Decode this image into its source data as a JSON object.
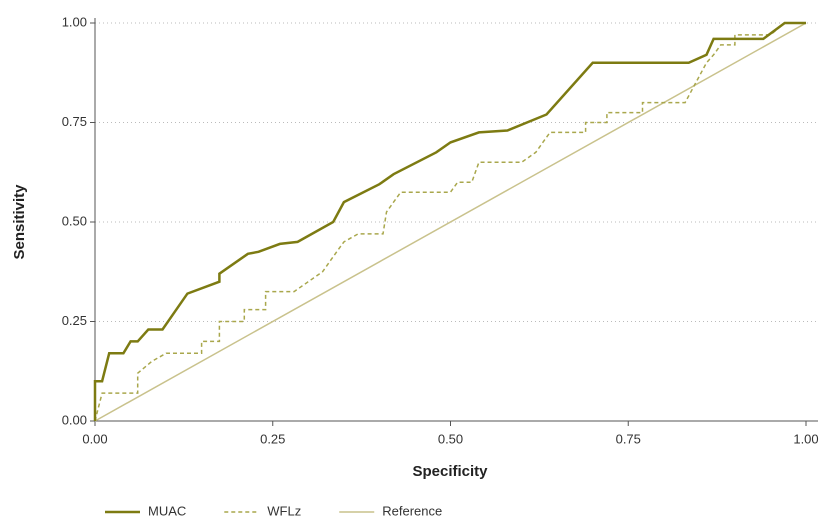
{
  "chart_data": {
    "type": "line",
    "xlabel": "Specificity",
    "ylabel": "Sensitivity",
    "xlim": [
      0,
      1
    ],
    "ylim": [
      0,
      1
    ],
    "xticks": [
      {
        "value": 0,
        "label": "0.00"
      },
      {
        "value": 0.25,
        "label": "0.25"
      },
      {
        "value": 0.5,
        "label": "0.50"
      },
      {
        "value": 0.75,
        "label": "0.75"
      },
      {
        "value": 1,
        "label": "1.00"
      }
    ],
    "yticks": [
      {
        "value": 0,
        "label": "0.00"
      },
      {
        "value": 0.25,
        "label": "0.25"
      },
      {
        "value": 0.5,
        "label": "0.50"
      },
      {
        "value": 0.75,
        "label": "0.75"
      },
      {
        "value": 1,
        "label": "1.00"
      }
    ],
    "grid": true,
    "legend": "bottom",
    "series": [
      {
        "name": "MUAC",
        "color": "#7d7b12",
        "linestyle": "solid",
        "x": [
          0,
          0,
          0.01,
          0.02,
          0.04,
          0.05,
          0.06,
          0.075,
          0.095,
          0.13,
          0.175,
          0.175,
          0.215,
          0.23,
          0.26,
          0.285,
          0.335,
          0.35,
          0.4,
          0.42,
          0.48,
          0.5,
          0.54,
          0.58,
          0.635,
          0.7,
          0.835,
          0.86,
          0.87,
          0.94,
          0.97,
          1
        ],
        "values": [
          0,
          0.1,
          0.1,
          0.17,
          0.17,
          0.2,
          0.2,
          0.23,
          0.23,
          0.32,
          0.35,
          0.37,
          0.42,
          0.425,
          0.445,
          0.45,
          0.5,
          0.55,
          0.595,
          0.62,
          0.675,
          0.7,
          0.725,
          0.73,
          0.77,
          0.9,
          0.9,
          0.92,
          0.96,
          0.96,
          1.0,
          1.0
        ]
      },
      {
        "name": "WFLz",
        "color": "#a9a74c",
        "linestyle": "dashed",
        "x": [
          0,
          0.01,
          0.06,
          0.06,
          0.08,
          0.1,
          0.15,
          0.15,
          0.175,
          0.175,
          0.21,
          0.21,
          0.24,
          0.24,
          0.28,
          0.3,
          0.32,
          0.33,
          0.34,
          0.35,
          0.37,
          0.405,
          0.41,
          0.43,
          0.5,
          0.51,
          0.53,
          0.54,
          0.6,
          0.62,
          0.64,
          0.69,
          0.69,
          0.72,
          0.72,
          0.77,
          0.77,
          0.83,
          0.86,
          0.87,
          0.88,
          0.9,
          0.9,
          0.95,
          0.97,
          1
        ],
        "values": [
          0,
          0.07,
          0.07,
          0.12,
          0.15,
          0.17,
          0.17,
          0.2,
          0.2,
          0.25,
          0.25,
          0.28,
          0.28,
          0.325,
          0.325,
          0.35,
          0.375,
          0.4,
          0.425,
          0.45,
          0.47,
          0.47,
          0.525,
          0.575,
          0.575,
          0.6,
          0.6,
          0.65,
          0.65,
          0.675,
          0.725,
          0.725,
          0.75,
          0.75,
          0.775,
          0.775,
          0.8,
          0.8,
          0.9,
          0.92,
          0.945,
          0.945,
          0.97,
          0.97,
          1.0,
          1.0
        ]
      },
      {
        "name": "Reference",
        "color": "#c9c28c",
        "linestyle": "solid",
        "x": [
          0,
          1
        ],
        "values": [
          0,
          1
        ]
      }
    ]
  }
}
